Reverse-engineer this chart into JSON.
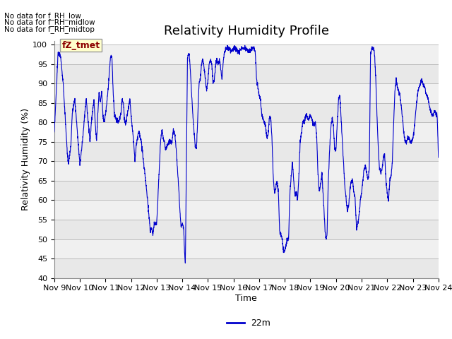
{
  "title": "Relativity Humidity Profile",
  "xlabel": "Time",
  "ylabel": "Relativity Humidity (%)",
  "ylim": [
    40,
    101
  ],
  "yticks": [
    40,
    45,
    50,
    55,
    60,
    65,
    70,
    75,
    80,
    85,
    90,
    95,
    100
  ],
  "x_labels": [
    "Nov 9",
    "Nov 10",
    "Nov 11",
    "Nov 12",
    "Nov 13",
    "Nov 14",
    "Nov 15",
    "Nov 16",
    "Nov 17",
    "Nov 18",
    "Nov 19",
    "Nov 20",
    "Nov 21",
    "Nov 22",
    "Nov 23",
    "Nov 24"
  ],
  "no_data_texts": [
    "No data for f_RH_low",
    "No data for f_RH_midlow",
    "No data for f_RH_midtop"
  ],
  "highlight_label": "fZ_tmet",
  "legend_label": "22m",
  "line_color": "#0000cc",
  "background_color": "#ffffff",
  "band_colors": [
    "#e8e8e8",
    "#f0f0f0"
  ],
  "title_fontsize": 13,
  "axis_label_fontsize": 9,
  "tick_fontsize": 8,
  "rh_keypoints": [
    [
      0.0,
      77
    ],
    [
      0.15,
      98
    ],
    [
      0.25,
      97
    ],
    [
      0.35,
      90
    ],
    [
      0.5,
      73
    ],
    [
      0.55,
      69
    ],
    [
      0.65,
      74
    ],
    [
      0.7,
      82
    ],
    [
      0.8,
      86
    ],
    [
      0.85,
      82
    ],
    [
      0.9,
      78
    ],
    [
      1.0,
      69
    ],
    [
      1.1,
      75
    ],
    [
      1.2,
      83
    ],
    [
      1.25,
      86
    ],
    [
      1.3,
      82
    ],
    [
      1.4,
      75
    ],
    [
      1.45,
      80
    ],
    [
      1.5,
      83
    ],
    [
      1.55,
      86
    ],
    [
      1.6,
      80
    ],
    [
      1.65,
      75
    ],
    [
      1.7,
      82
    ],
    [
      1.75,
      88
    ],
    [
      1.8,
      85
    ],
    [
      1.85,
      88
    ],
    [
      1.9,
      82
    ],
    [
      1.95,
      80
    ],
    [
      2.0,
      82
    ],
    [
      2.1,
      88
    ],
    [
      2.15,
      93
    ],
    [
      2.2,
      97
    ],
    [
      2.25,
      97
    ],
    [
      2.3,
      88
    ],
    [
      2.35,
      82
    ],
    [
      2.4,
      81
    ],
    [
      2.5,
      80
    ],
    [
      2.6,
      82
    ],
    [
      2.65,
      86
    ],
    [
      2.7,
      85
    ],
    [
      2.75,
      80
    ],
    [
      2.8,
      80
    ],
    [
      2.9,
      84
    ],
    [
      2.95,
      86
    ],
    [
      3.0,
      82
    ],
    [
      3.1,
      75
    ],
    [
      3.15,
      70
    ],
    [
      3.2,
      74
    ],
    [
      3.3,
      78
    ],
    [
      3.4,
      75
    ],
    [
      3.5,
      69
    ],
    [
      3.6,
      63
    ],
    [
      3.7,
      56
    ],
    [
      3.75,
      52
    ],
    [
      3.8,
      53
    ],
    [
      3.85,
      51
    ],
    [
      3.9,
      54
    ],
    [
      4.0,
      54
    ],
    [
      4.1,
      68
    ],
    [
      4.15,
      75
    ],
    [
      4.2,
      78
    ],
    [
      4.3,
      75
    ],
    [
      4.35,
      73
    ],
    [
      4.4,
      74
    ],
    [
      4.5,
      75
    ],
    [
      4.6,
      75
    ],
    [
      4.65,
      78
    ],
    [
      4.7,
      77
    ],
    [
      4.75,
      74
    ],
    [
      4.8,
      69
    ],
    [
      4.85,
      64
    ],
    [
      4.9,
      58
    ],
    [
      4.95,
      53
    ],
    [
      5.0,
      54
    ],
    [
      5.05,
      53
    ],
    [
      5.1,
      45
    ],
    [
      5.12,
      44
    ],
    [
      5.2,
      96
    ],
    [
      5.25,
      98
    ],
    [
      5.3,
      95
    ],
    [
      5.4,
      83
    ],
    [
      5.5,
      74
    ],
    [
      5.55,
      73
    ],
    [
      5.6,
      80
    ],
    [
      5.65,
      90
    ],
    [
      5.7,
      91
    ],
    [
      5.75,
      95
    ],
    [
      5.8,
      96
    ],
    [
      5.85,
      94
    ],
    [
      5.9,
      91
    ],
    [
      5.95,
      88
    ],
    [
      6.0,
      91
    ],
    [
      6.05,
      95
    ],
    [
      6.1,
      96
    ],
    [
      6.15,
      95
    ],
    [
      6.2,
      90
    ],
    [
      6.25,
      91
    ],
    [
      6.3,
      95
    ],
    [
      6.35,
      96
    ],
    [
      6.4,
      95
    ],
    [
      6.45,
      96
    ],
    [
      6.5,
      94
    ],
    [
      6.55,
      91
    ],
    [
      6.6,
      96
    ],
    [
      6.65,
      98
    ],
    [
      6.7,
      99
    ],
    [
      6.75,
      99
    ],
    [
      6.8,
      99
    ],
    [
      6.85,
      99
    ],
    [
      6.9,
      98
    ],
    [
      7.0,
      99
    ],
    [
      7.1,
      99
    ],
    [
      7.2,
      98
    ],
    [
      7.3,
      99
    ],
    [
      7.5,
      99
    ],
    [
      7.6,
      98
    ],
    [
      7.7,
      99
    ],
    [
      7.8,
      99
    ],
    [
      7.85,
      98
    ],
    [
      7.9,
      91
    ],
    [
      8.0,
      87
    ],
    [
      8.05,
      86
    ],
    [
      8.1,
      82
    ],
    [
      8.15,
      81
    ],
    [
      8.2,
      80
    ],
    [
      8.25,
      79
    ],
    [
      8.3,
      76
    ],
    [
      8.35,
      77
    ],
    [
      8.4,
      81
    ],
    [
      8.45,
      81
    ],
    [
      8.5,
      76
    ],
    [
      8.55,
      66
    ],
    [
      8.6,
      62
    ],
    [
      8.65,
      63
    ],
    [
      8.7,
      65
    ],
    [
      8.75,
      62
    ],
    [
      8.8,
      52
    ],
    [
      8.85,
      51
    ],
    [
      8.9,
      50
    ],
    [
      8.95,
      47
    ],
    [
      9.0,
      47
    ],
    [
      9.1,
      50
    ],
    [
      9.15,
      50
    ],
    [
      9.2,
      62
    ],
    [
      9.25,
      66
    ],
    [
      9.3,
      70
    ],
    [
      9.35,
      65
    ],
    [
      9.4,
      61
    ],
    [
      9.45,
      62
    ],
    [
      9.5,
      60
    ],
    [
      9.55,
      66
    ],
    [
      9.6,
      75
    ],
    [
      9.65,
      77
    ],
    [
      9.7,
      80
    ],
    [
      9.75,
      80
    ],
    [
      9.8,
      81
    ],
    [
      9.85,
      82
    ],
    [
      9.9,
      81
    ],
    [
      9.95,
      81
    ],
    [
      10.0,
      82
    ],
    [
      10.1,
      80
    ],
    [
      10.15,
      79
    ],
    [
      10.2,
      80
    ],
    [
      10.25,
      76
    ],
    [
      10.3,
      66
    ],
    [
      10.35,
      62
    ],
    [
      10.4,
      64
    ],
    [
      10.45,
      67
    ],
    [
      10.5,
      61
    ],
    [
      10.55,
      55
    ],
    [
      10.6,
      50
    ],
    [
      10.65,
      51
    ],
    [
      10.7,
      65
    ],
    [
      10.75,
      73
    ],
    [
      10.8,
      79
    ],
    [
      10.85,
      81
    ],
    [
      10.9,
      79
    ],
    [
      10.95,
      73
    ],
    [
      11.0,
      73
    ],
    [
      11.05,
      80
    ],
    [
      11.1,
      86
    ],
    [
      11.15,
      87
    ],
    [
      11.2,
      81
    ],
    [
      11.25,
      75
    ],
    [
      11.3,
      69
    ],
    [
      11.35,
      63
    ],
    [
      11.4,
      60
    ],
    [
      11.45,
      57
    ],
    [
      11.5,
      59
    ],
    [
      11.55,
      63
    ],
    [
      11.6,
      65
    ],
    [
      11.65,
      65
    ],
    [
      11.7,
      62
    ],
    [
      11.75,
      60
    ],
    [
      11.8,
      53
    ],
    [
      11.85,
      54
    ],
    [
      11.9,
      56
    ],
    [
      11.95,
      60
    ],
    [
      12.0,
      62
    ],
    [
      12.05,
      65
    ],
    [
      12.1,
      68
    ],
    [
      12.15,
      69
    ],
    [
      12.2,
      67
    ],
    [
      12.25,
      65
    ],
    [
      12.3,
      68
    ],
    [
      12.35,
      98
    ],
    [
      12.4,
      99
    ],
    [
      12.45,
      99
    ],
    [
      12.5,
      98
    ],
    [
      12.55,
      92
    ],
    [
      12.6,
      82
    ],
    [
      12.65,
      73
    ],
    [
      12.7,
      68
    ],
    [
      12.75,
      67
    ],
    [
      12.8,
      68
    ],
    [
      12.85,
      71
    ],
    [
      12.9,
      72
    ],
    [
      12.95,
      65
    ],
    [
      13.0,
      62
    ],
    [
      13.05,
      60
    ],
    [
      13.1,
      65
    ],
    [
      13.15,
      66
    ],
    [
      13.2,
      70
    ],
    [
      13.25,
      80
    ],
    [
      13.3,
      88
    ],
    [
      13.35,
      91
    ],
    [
      13.4,
      89
    ],
    [
      13.45,
      88
    ],
    [
      13.5,
      87
    ],
    [
      13.55,
      84
    ],
    [
      13.6,
      81
    ],
    [
      13.65,
      77
    ],
    [
      13.7,
      75
    ],
    [
      13.75,
      75
    ],
    [
      13.8,
      76
    ],
    [
      13.85,
      76
    ],
    [
      13.9,
      75
    ],
    [
      13.95,
      75
    ],
    [
      14.0,
      76
    ],
    [
      14.05,
      78
    ],
    [
      14.1,
      82
    ],
    [
      14.15,
      85
    ],
    [
      14.2,
      88
    ],
    [
      14.25,
      89
    ],
    [
      14.3,
      90
    ],
    [
      14.35,
      91
    ],
    [
      14.4,
      90
    ],
    [
      14.45,
      89
    ],
    [
      14.5,
      88
    ],
    [
      14.55,
      87
    ],
    [
      14.6,
      86
    ],
    [
      14.65,
      84
    ],
    [
      14.7,
      83
    ],
    [
      14.75,
      82
    ],
    [
      14.8,
      82
    ],
    [
      14.85,
      83
    ],
    [
      14.9,
      82
    ],
    [
      14.95,
      82
    ],
    [
      15.0,
      71
    ]
  ]
}
